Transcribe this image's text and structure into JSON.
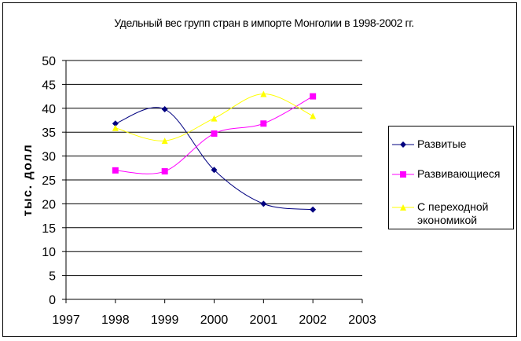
{
  "chart_data": {
    "type": "line",
    "title": "Удельный вес групп стран в импорте Монголии в 1998-2002 гг.",
    "xlabel": "",
    "ylabel": "тыс. долл",
    "xlim": [
      1997,
      2003
    ],
    "ylim": [
      0,
      50
    ],
    "x_ticks": [
      1997,
      1998,
      1999,
      2000,
      2001,
      2002,
      2003
    ],
    "y_ticks": [
      0,
      5,
      10,
      15,
      20,
      25,
      30,
      35,
      40,
      45,
      50
    ],
    "grid": "horizontal",
    "legend_position": "right",
    "smooth": true,
    "series": [
      {
        "name": "Развитые",
        "color": "#000080",
        "marker": "diamond",
        "x": [
          1998,
          1999,
          2000,
          2001,
          2002
        ],
        "values": [
          36.8,
          39.8,
          27.1,
          20.0,
          18.8
        ]
      },
      {
        "name": "Развивающиеся",
        "color": "#ff00ff",
        "marker": "square",
        "x": [
          1998,
          1999,
          2000,
          2001,
          2002
        ],
        "values": [
          27.0,
          26.8,
          34.7,
          36.8,
          42.5
        ]
      },
      {
        "name": "С переходной экономикой",
        "color": "#ffff00",
        "marker": "triangle",
        "x": [
          1998,
          1999,
          2000,
          2001,
          2002
        ],
        "values": [
          35.9,
          33.2,
          37.9,
          43.0,
          38.4
        ]
      }
    ]
  }
}
